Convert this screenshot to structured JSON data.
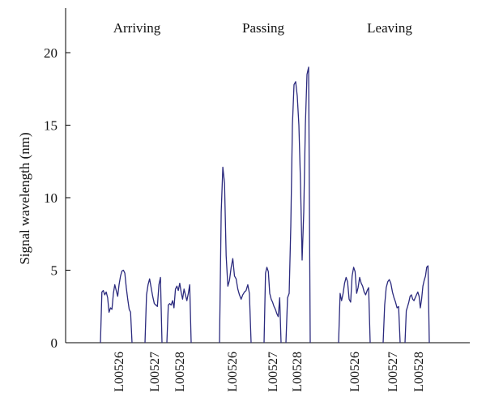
{
  "chart_data": {
    "type": "line",
    "title": "",
    "ylabel": "Signal wavelength (nm)",
    "xlabel": "",
    "ylim": [
      0,
      22.5
    ],
    "yticks": [
      0,
      5,
      10,
      15,
      20
    ],
    "grid": false,
    "color": "#2b2a7e",
    "groups": [
      {
        "name": "Arriving",
        "sensors": [
          {
            "label": "L00526",
            "values": [
              0,
              3.5,
              3.6,
              3.3,
              3.5,
              3.1,
              2.1,
              2.4,
              2.3,
              3.4,
              4.0,
              3.6,
              3.2,
              4.0,
              4.6,
              4.95,
              5.0,
              4.8,
              3.8,
              3.0,
              2.3,
              2.1,
              0
            ]
          },
          {
            "label": "L00527",
            "values": [
              0,
              3.3,
              4.0,
              4.4,
              3.8,
              3.2,
              2.7,
              2.6,
              2.5,
              4.0,
              4.5,
              0
            ]
          },
          {
            "label": "L00528",
            "values": [
              0,
              2.6,
              2.7,
              2.6,
              2.9,
              2.4,
              3.7,
              3.9,
              3.6,
              4.1,
              3.5,
              3.0,
              3.7,
              3.3,
              2.9,
              3.4,
              4.0,
              0
            ]
          }
        ]
      },
      {
        "name": "Passing",
        "sensors": [
          {
            "label": "L00526",
            "values": [
              0,
              9.0,
              12.1,
              11.0,
              6.0,
              3.9,
              4.3,
              5.2,
              5.8,
              4.6,
              4.4,
              3.7,
              3.3,
              3.0,
              3.3,
              3.5,
              3.6,
              4.0,
              3.4,
              0
            ]
          },
          {
            "label": "L00527",
            "values": [
              0,
              4.8,
              5.2,
              4.9,
              3.4,
              3.0,
              2.8,
              2.5,
              2.3,
              2.0,
              1.8,
              3.1,
              0
            ]
          },
          {
            "label": "L00528",
            "values": [
              0,
              3.1,
              3.4,
              8.0,
              15.0,
              17.8,
              18.0,
              17.0,
              15.0,
              11.0,
              5.7,
              9.0,
              15.0,
              18.5,
              19.0,
              0
            ]
          }
        ]
      },
      {
        "name": "Leaving",
        "sensors": [
          {
            "label": "L00526",
            "values": [
              0,
              3.4,
              2.9,
              3.4,
              4.1,
              4.5,
              4.2,
              3.0,
              2.8,
              4.6,
              5.2,
              4.9,
              3.4,
              3.8,
              4.5,
              4.1,
              3.9,
              3.5,
              3.3,
              3.6,
              3.8,
              0
            ]
          },
          {
            "label": "L00527",
            "values": [
              0,
              2.6,
              3.8,
              4.2,
              4.35,
              4.1,
              3.5,
              3.1,
              2.8,
              2.4,
              2.5,
              0
            ]
          },
          {
            "label": "L00528",
            "values": [
              0,
              2.2,
              2.5,
              2.8,
              3.2,
              3.3,
              3.0,
              2.9,
              3.1,
              3.3,
              3.5,
              3.2,
              2.4,
              3.0,
              3.9,
              4.3,
              4.6,
              5.2,
              5.3,
              0
            ]
          }
        ]
      }
    ]
  }
}
